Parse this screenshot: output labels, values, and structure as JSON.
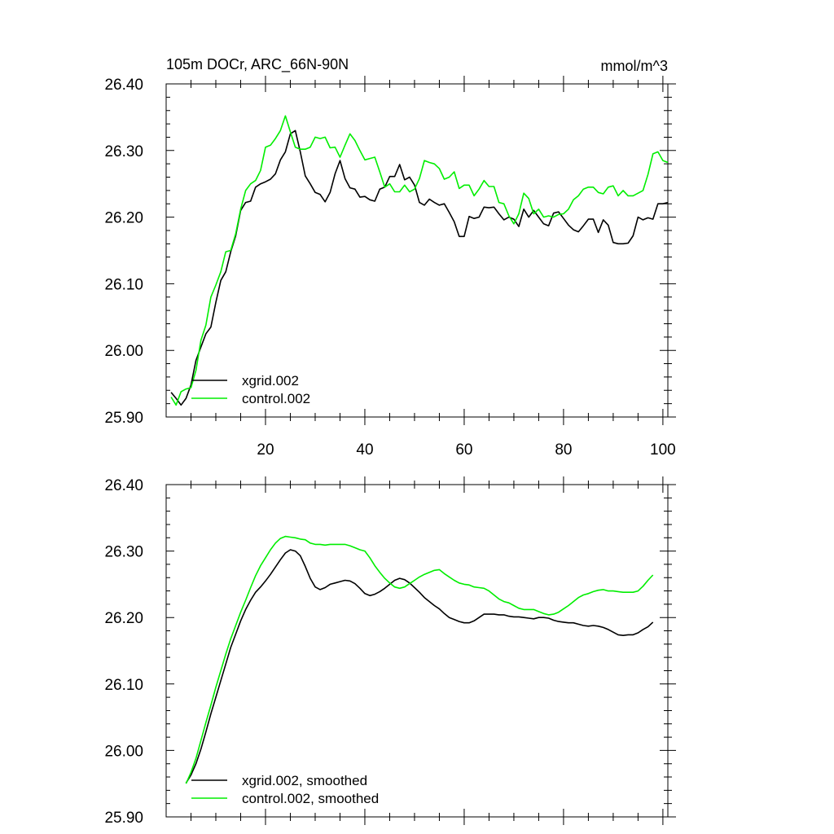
{
  "chart_data": [
    {
      "type": "line",
      "title": "105m DOCr, ARC_66N-90N",
      "units": "mmol/m^3",
      "xlabel": "",
      "ylabel": "",
      "xlim": [
        0,
        101
      ],
      "ylim": [
        25.9,
        26.4
      ],
      "xticks": [
        20,
        40,
        60,
        80,
        100
      ],
      "xtick_labels": [
        "20",
        "40",
        "60",
        "80",
        "100"
      ],
      "yticks": [
        25.9,
        26.0,
        26.1,
        26.2,
        26.3,
        26.4
      ],
      "ytick_labels": [
        "25.90",
        "26.00",
        "26.10",
        "26.20",
        "26.30",
        "26.40"
      ],
      "legend_position": "bottom-left",
      "series": [
        {
          "name": "xgrid.002",
          "color": "#000000",
          "x": [
            1,
            2,
            3,
            4,
            5,
            6,
            7,
            8,
            9,
            10,
            11,
            12,
            13,
            14,
            15,
            16,
            17,
            18,
            19,
            20,
            21,
            22,
            23,
            24,
            25,
            26,
            27,
            28,
            29,
            30,
            31,
            32,
            33,
            34,
            35,
            36,
            37,
            38,
            39,
            40,
            41,
            42,
            43,
            44,
            45,
            46,
            47,
            48,
            49,
            50,
            51,
            52,
            53,
            54,
            55,
            56,
            57,
            58,
            59,
            60,
            61,
            62,
            63,
            64,
            65,
            66,
            67,
            68,
            69,
            70,
            71,
            72,
            73,
            74,
            75,
            76,
            77,
            78,
            79,
            80,
            81,
            82,
            83,
            84,
            85,
            86,
            87,
            88,
            89,
            90,
            91,
            92,
            93,
            94,
            95,
            96,
            97,
            98,
            99,
            100,
            101
          ],
          "values": [
            25.937,
            25.928,
            25.918,
            25.928,
            25.948,
            25.985,
            26.005,
            26.025,
            26.035,
            26.072,
            26.105,
            26.118,
            26.148,
            26.172,
            26.21,
            26.222,
            26.224,
            26.245,
            26.25,
            26.253,
            26.257,
            26.265,
            26.286,
            26.298,
            26.325,
            26.33,
            26.298,
            26.262,
            26.25,
            26.237,
            26.234,
            26.223,
            26.237,
            26.265,
            26.285,
            26.258,
            26.244,
            26.242,
            26.23,
            26.231,
            26.226,
            26.224,
            26.242,
            26.245,
            26.261,
            26.261,
            26.279,
            26.256,
            26.26,
            26.248,
            26.222,
            26.218,
            26.227,
            26.222,
            26.218,
            26.22,
            26.207,
            26.193,
            26.171,
            26.171,
            26.201,
            26.198,
            26.2,
            26.215,
            26.214,
            26.215,
            26.205,
            26.196,
            26.2,
            26.197,
            26.186,
            26.212,
            26.2,
            26.21,
            26.2,
            26.19,
            26.187,
            26.206,
            26.208,
            26.198,
            26.188,
            26.181,
            26.178,
            26.187,
            26.197,
            26.197,
            26.177,
            26.196,
            26.188,
            26.162,
            26.16,
            26.16,
            26.161,
            26.172,
            26.2,
            26.196,
            26.199,
            26.197,
            26.22,
            26.22,
            26.222
          ]
        },
        {
          "name": "control.002",
          "color": "#00ee00",
          "x": [
            1,
            2,
            3,
            4,
            5,
            6,
            7,
            8,
            9,
            10,
            11,
            12,
            13,
            14,
            15,
            16,
            17,
            18,
            19,
            20,
            21,
            22,
            23,
            24,
            25,
            26,
            27,
            28,
            29,
            30,
            31,
            32,
            33,
            34,
            35,
            36,
            37,
            38,
            39,
            40,
            41,
            42,
            43,
            44,
            45,
            46,
            47,
            48,
            49,
            50,
            51,
            52,
            53,
            54,
            55,
            56,
            57,
            58,
            59,
            60,
            61,
            62,
            63,
            64,
            65,
            66,
            67,
            68,
            69,
            70,
            71,
            72,
            73,
            74,
            75,
            76,
            77,
            78,
            79,
            80,
            81,
            82,
            83,
            84,
            85,
            86,
            87,
            88,
            89,
            90,
            91,
            92,
            93,
            94,
            95,
            96,
            97,
            98,
            99,
            100,
            101
          ],
          "values": [
            25.93,
            25.918,
            25.938,
            25.942,
            25.944,
            25.97,
            26.015,
            26.038,
            26.08,
            26.098,
            26.118,
            26.148,
            26.15,
            26.175,
            26.212,
            26.24,
            26.25,
            26.255,
            26.27,
            26.305,
            26.308,
            26.318,
            26.33,
            26.352,
            26.328,
            26.305,
            26.302,
            26.302,
            26.305,
            26.32,
            26.318,
            26.32,
            26.304,
            26.305,
            26.29,
            26.308,
            26.325,
            26.315,
            26.3,
            26.286,
            26.288,
            26.29,
            26.268,
            26.245,
            26.25,
            26.238,
            26.238,
            26.248,
            26.238,
            26.242,
            26.258,
            26.285,
            26.282,
            26.28,
            26.273,
            26.257,
            26.26,
            26.268,
            26.243,
            26.248,
            26.248,
            26.232,
            26.242,
            26.255,
            26.246,
            26.246,
            26.222,
            26.22,
            26.202,
            26.19,
            26.205,
            26.236,
            26.228,
            26.205,
            26.212,
            26.2,
            26.202,
            26.2,
            26.204,
            26.205,
            26.212,
            26.226,
            26.232,
            26.242,
            26.245,
            26.245,
            26.237,
            26.235,
            26.245,
            26.247,
            26.232,
            26.24,
            26.232,
            26.232,
            26.236,
            26.24,
            26.264,
            26.295,
            26.298,
            26.285,
            26.282
          ]
        }
      ]
    },
    {
      "type": "line",
      "title": "",
      "xlabel": "",
      "ylabel": "",
      "xlim": [
        0,
        101
      ],
      "ylim": [
        25.9,
        26.4
      ],
      "xticks": [
        20,
        40,
        60,
        80,
        100
      ],
      "yticks": [
        25.9,
        26.0,
        26.1,
        26.2,
        26.3,
        26.4
      ],
      "ytick_labels": [
        "25.90",
        "26.00",
        "26.10",
        "26.20",
        "26.30",
        "26.40"
      ],
      "legend_position": "bottom-left",
      "series": [
        {
          "name": "xgrid.002, smoothed",
          "color": "#000000",
          "x": [
            4,
            5,
            6,
            7,
            8,
            9,
            10,
            11,
            12,
            13,
            14,
            15,
            16,
            17,
            18,
            19,
            20,
            21,
            22,
            23,
            24,
            25,
            26,
            27,
            28,
            29,
            30,
            31,
            32,
            33,
            34,
            35,
            36,
            37,
            38,
            39,
            40,
            41,
            42,
            43,
            44,
            45,
            46,
            47,
            48,
            49,
            50,
            51,
            52,
            53,
            54,
            55,
            56,
            57,
            58,
            59,
            60,
            61,
            62,
            63,
            64,
            65,
            66,
            67,
            68,
            69,
            70,
            71,
            72,
            73,
            74,
            75,
            76,
            77,
            78,
            79,
            80,
            81,
            82,
            83,
            84,
            85,
            86,
            87,
            88,
            89,
            90,
            91,
            92,
            93,
            94,
            95,
            96,
            97,
            98
          ],
          "values": [
            25.951,
            25.963,
            25.98,
            26.002,
            26.028,
            26.055,
            26.08,
            26.105,
            26.13,
            26.155,
            26.175,
            26.195,
            26.212,
            26.226,
            26.238,
            26.246,
            26.255,
            26.265,
            26.276,
            26.287,
            26.297,
            26.302,
            26.3,
            26.293,
            26.277,
            26.259,
            26.246,
            26.242,
            26.245,
            26.25,
            26.252,
            26.254,
            26.256,
            26.255,
            26.251,
            26.244,
            26.236,
            26.233,
            26.235,
            26.239,
            26.244,
            26.25,
            26.256,
            26.259,
            26.257,
            26.252,
            26.245,
            26.238,
            26.23,
            26.224,
            26.218,
            26.213,
            26.206,
            26.2,
            26.197,
            26.194,
            26.192,
            26.192,
            26.195,
            26.2,
            26.205,
            26.205,
            26.205,
            26.204,
            26.204,
            26.202,
            26.201,
            26.201,
            26.2,
            26.199,
            26.198,
            26.2,
            26.2,
            26.199,
            26.196,
            26.194,
            26.193,
            26.192,
            26.192,
            26.19,
            26.188,
            26.187,
            26.188,
            26.187,
            26.185,
            26.182,
            26.178,
            26.174,
            26.173,
            26.174,
            26.174,
            26.177,
            26.182,
            26.186,
            26.193
          ]
        },
        {
          "name": "control.002, smoothed",
          "color": "#00ee00",
          "x": [
            4,
            5,
            6,
            7,
            8,
            9,
            10,
            11,
            12,
            13,
            14,
            15,
            16,
            17,
            18,
            19,
            20,
            21,
            22,
            23,
            24,
            25,
            26,
            27,
            28,
            29,
            30,
            31,
            32,
            33,
            34,
            35,
            36,
            37,
            38,
            39,
            40,
            41,
            42,
            43,
            44,
            45,
            46,
            47,
            48,
            49,
            50,
            51,
            52,
            53,
            54,
            55,
            56,
            57,
            58,
            59,
            60,
            61,
            62,
            63,
            64,
            65,
            66,
            67,
            68,
            69,
            70,
            71,
            72,
            73,
            74,
            75,
            76,
            77,
            78,
            79,
            80,
            81,
            82,
            83,
            84,
            85,
            86,
            87,
            88,
            89,
            90,
            91,
            92,
            93,
            94,
            95,
            96,
            97,
            98
          ],
          "values": [
            25.95,
            25.967,
            25.988,
            26.015,
            26.042,
            26.068,
            26.095,
            26.12,
            26.145,
            26.168,
            26.188,
            26.208,
            26.226,
            26.245,
            26.263,
            26.278,
            26.29,
            26.302,
            26.312,
            26.319,
            26.322,
            26.321,
            26.32,
            26.318,
            26.317,
            26.312,
            26.31,
            26.31,
            26.309,
            26.31,
            26.31,
            26.31,
            26.31,
            26.308,
            26.305,
            26.302,
            26.3,
            26.29,
            26.278,
            26.268,
            26.259,
            26.252,
            26.246,
            26.244,
            26.246,
            26.251,
            26.256,
            26.261,
            26.265,
            26.268,
            26.271,
            26.272,
            26.266,
            26.261,
            26.256,
            26.252,
            26.25,
            26.249,
            26.246,
            26.245,
            26.244,
            26.24,
            26.234,
            26.228,
            26.224,
            26.222,
            26.218,
            26.214,
            26.212,
            26.212,
            26.212,
            26.209,
            26.206,
            26.204,
            26.205,
            26.208,
            26.213,
            26.218,
            26.224,
            26.23,
            26.234,
            26.236,
            26.239,
            26.241,
            26.242,
            26.24,
            26.24,
            26.239,
            26.238,
            26.238,
            26.238,
            26.24,
            26.247,
            26.256,
            26.264
          ]
        }
      ]
    }
  ]
}
